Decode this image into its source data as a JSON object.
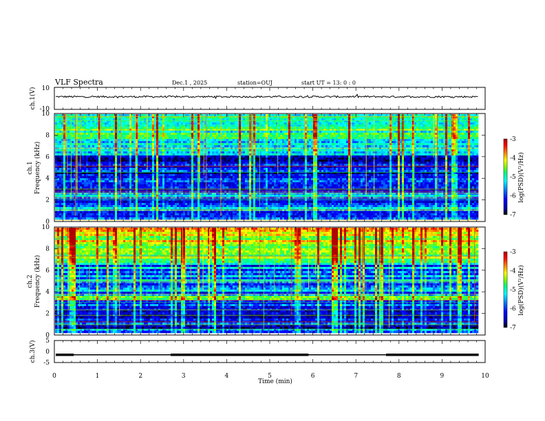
{
  "header": {
    "title": "VLF Spectra",
    "date": "Dec.1  , 2025",
    "station": "station=OUJ",
    "start_ut": "start  UT  =   13: 0  : 0"
  },
  "chart_data": [
    {
      "type": "line",
      "name": "ch1-waveform",
      "ylabel": "ch.1(V)",
      "ylim": [
        -10,
        10
      ],
      "yticks": [
        "10",
        "-10"
      ],
      "mean_value": 1.5,
      "noise_amplitude": 0.8
    },
    {
      "type": "heatmap",
      "name": "ch1-spectrogram",
      "ylabel_line1": "ch.1",
      "ylabel_line2": "Frequency  (kHz)",
      "ylim": [
        0,
        10
      ],
      "yticks": [
        "0",
        "2",
        "4",
        "6",
        "8",
        "10"
      ],
      "colorbar": {
        "label": "log(PSD)(V²/Hz)",
        "range": [
          -7,
          -3
        ],
        "ticks": [
          "-3",
          "-4",
          "-5",
          "-6",
          "-7"
        ]
      }
    },
    {
      "type": "heatmap",
      "name": "ch2-spectrogram",
      "ylabel_line1": "ch.2",
      "ylabel_line2": "Frequency  (kHz)",
      "ylim": [
        0,
        10
      ],
      "yticks": [
        "0",
        "2",
        "4",
        "6",
        "8",
        "10"
      ],
      "colorbar": {
        "label": "log(PSD)(V²/Hz)",
        "range": [
          -7,
          -3
        ],
        "ticks": [
          "-3",
          "-4",
          "-5",
          "-6",
          "-7"
        ]
      }
    },
    {
      "type": "line",
      "name": "ch3-waveform",
      "ylabel": "ch.3(V)",
      "ylim": [
        -5,
        5
      ],
      "yticks": [
        "5",
        "0",
        "-5"
      ],
      "value": -1.5,
      "thick_segments": [
        [
          2.7,
          3.8
        ],
        [
          3.8,
          5.9
        ],
        [
          7.7,
          9.85
        ]
      ]
    }
  ],
  "xaxis": {
    "label": "Time  (min)",
    "xlim": [
      0,
      10
    ],
    "ticks": [
      "0",
      "1",
      "2",
      "3",
      "4",
      "5",
      "6",
      "7",
      "8",
      "9",
      "10"
    ],
    "data_end": 9.85
  },
  "colors": {
    "spectrum_stops": [
      "#000000",
      "#0000a0",
      "#0000ff",
      "#0080ff",
      "#00ffff",
      "#00ff80",
      "#80ff00",
      "#ffff00",
      "#ff8000",
      "#ff0000",
      "#b00000"
    ],
    "axis": "#000000"
  }
}
